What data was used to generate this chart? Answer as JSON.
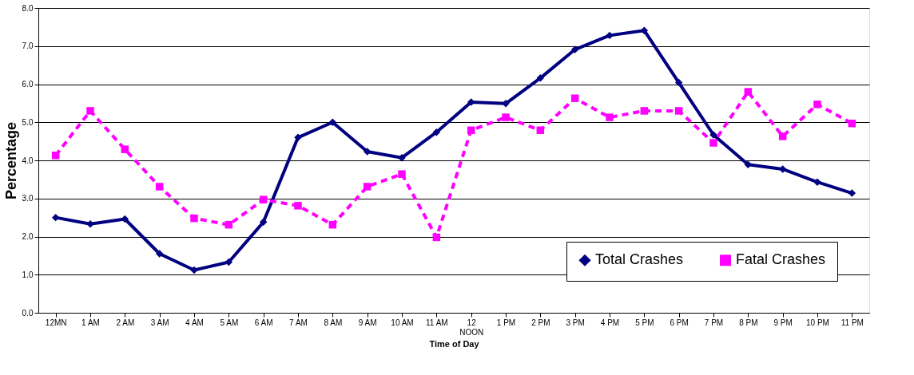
{
  "chart_data": {
    "type": "line",
    "xlabel": "Time of Day",
    "ylabel": "Percentage",
    "categories": [
      "12MN",
      "1 AM",
      "2 AM",
      "3 AM",
      "4 AM",
      "5 AM",
      "6 AM",
      "7 AM",
      "8 AM",
      "9 AM",
      "10 AM",
      "11 AM",
      "12\nNOON",
      "1 PM",
      "2 PM",
      "3 PM",
      "4 PM",
      "5 PM",
      "6 PM",
      "7 PM",
      "8 PM",
      "9 PM",
      "10 PM",
      "11 PM"
    ],
    "series": [
      {
        "name": "Total Crashes",
        "color": "#000080",
        "marker": "diamond",
        "line_style": "solid",
        "values": [
          2.5,
          2.33,
          2.46,
          1.55,
          1.12,
          1.33,
          2.38,
          4.6,
          5.0,
          4.23,
          4.07,
          4.74,
          5.53,
          5.49,
          6.16,
          6.91,
          7.28,
          7.41,
          6.04,
          4.67,
          3.89,
          3.77,
          3.43,
          3.14
        ]
      },
      {
        "name": "Fatal Crashes",
        "color": "#ff00ff",
        "marker": "square",
        "line_style": "dashed",
        "values": [
          4.13,
          5.3,
          4.29,
          3.31,
          2.48,
          2.31,
          2.97,
          2.81,
          2.31,
          3.31,
          3.64,
          1.98,
          4.79,
          5.13,
          4.79,
          5.63,
          5.13,
          5.3,
          5.3,
          4.46,
          5.8,
          4.63,
          5.47,
          4.97
        ]
      }
    ],
    "ylim": [
      0,
      8
    ],
    "yticks": [
      {
        "value": 0,
        "label": "0.0"
      },
      {
        "value": 1,
        "label": "1.0"
      },
      {
        "value": 2,
        "label": "2.0"
      },
      {
        "value": 3,
        "label": "3.0"
      },
      {
        "value": 4,
        "label": "4.0"
      },
      {
        "value": 5,
        "label": "5.0"
      },
      {
        "value": 6,
        "label": "6.0"
      },
      {
        "value": 7,
        "label": "7.0"
      },
      {
        "value": 8,
        "label": "8.0"
      }
    ],
    "grid": "y",
    "legend": "bottom right"
  }
}
